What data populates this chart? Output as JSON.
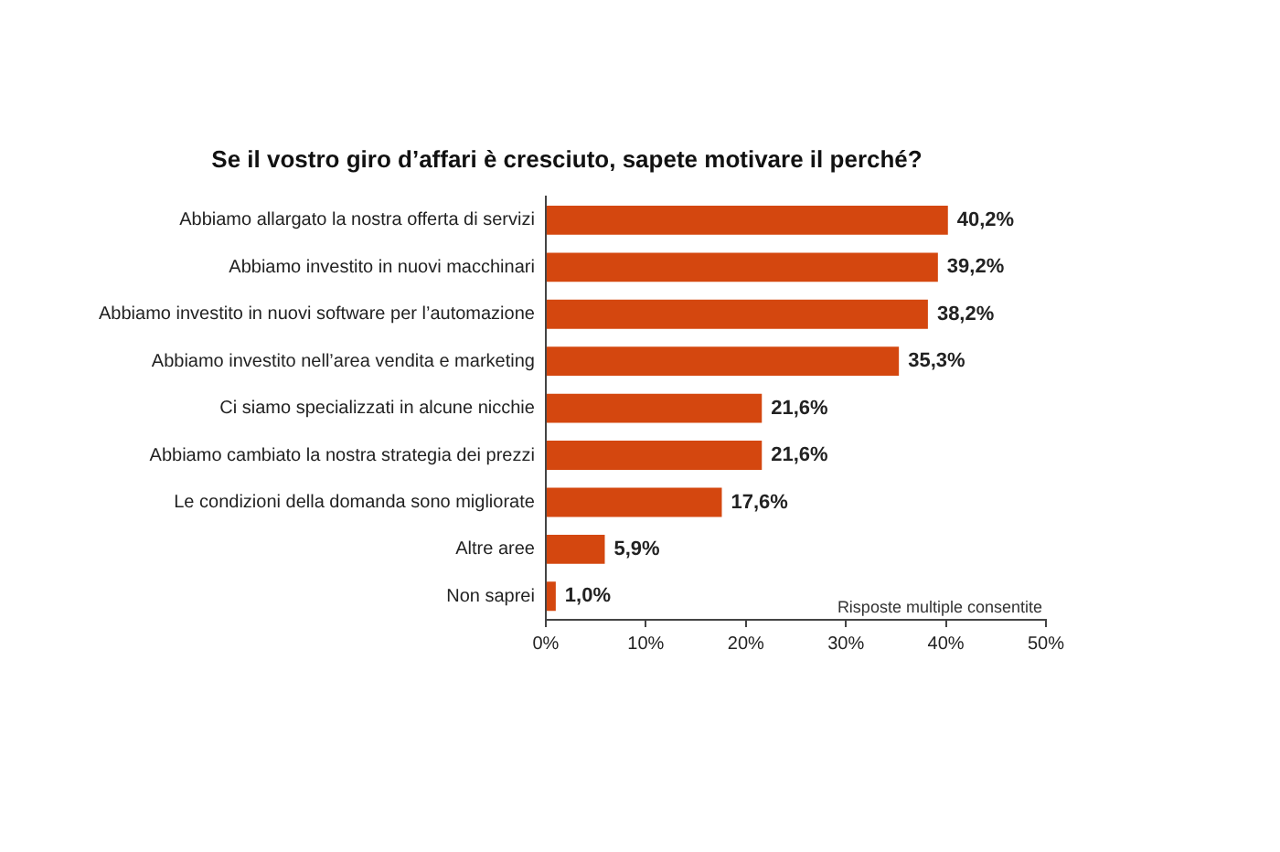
{
  "chart_data": {
    "type": "bar",
    "orientation": "horizontal",
    "title": "Se il vostro giro d’affari è cresciuto, sapete motivare il perché?",
    "categories": [
      "Abbiamo allargato la nostra offerta di servizi",
      "Abbiamo investito in nuovi macchinari",
      "Abbiamo investito in nuovi software per l’automazione",
      "Abbiamo investito nell’area vendita e marketing",
      "Ci siamo specializzati in alcune nicchie",
      "Abbiamo cambiato la nostra strategia dei prezzi",
      "Le condizioni della domanda sono migliorate",
      "Altre aree",
      "Non saprei"
    ],
    "values": [
      40.2,
      39.2,
      38.2,
      35.3,
      21.6,
      21.6,
      17.6,
      5.9,
      1.0
    ],
    "value_labels": [
      "40,2%",
      "39,2%",
      "38,2%",
      "35,3%",
      "21,6%",
      "21,6%",
      "17,6%",
      "5,9%",
      "1,0%"
    ],
    "color": "#d4470f",
    "xlim": [
      0,
      50
    ],
    "xticks": [
      {
        "value": 0,
        "label": "0%"
      },
      {
        "value": 10,
        "label": "10%"
      },
      {
        "value": 20,
        "label": "20%"
      },
      {
        "value": 30,
        "label": "30%"
      },
      {
        "value": 40,
        "label": "40%"
      },
      {
        "value": 50,
        "label": "50%"
      }
    ],
    "grid": false,
    "legend": false,
    "annotations": [
      "Risposte multiple consentite"
    ]
  }
}
